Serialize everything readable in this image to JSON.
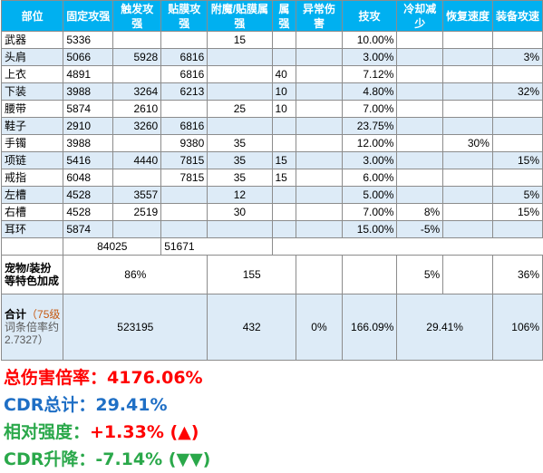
{
  "header": [
    "部位",
    "固定攻强",
    "触发攻强",
    "贴膜攻强",
    "附魔/贴膜属强",
    "属强",
    "异常伤害",
    "技攻",
    "冷却减少",
    "恢复速度",
    "装备攻速"
  ],
  "rows": [
    [
      "武器",
      "5336",
      "",
      "",
      "15",
      "",
      "",
      "10.00%",
      "",
      "",
      ""
    ],
    [
      "头肩",
      "5066",
      "5928",
      "6816",
      "",
      "",
      "",
      "3.00%",
      "",
      "",
      "3%"
    ],
    [
      "上衣",
      "4891",
      "",
      "6816",
      "",
      "40",
      "",
      "7.12%",
      "",
      "",
      ""
    ],
    [
      "下装",
      "3988",
      "3264",
      "6213",
      "",
      "10",
      "",
      "4.80%",
      "",
      "",
      "32%"
    ],
    [
      "腰带",
      "5874",
      "2610",
      "",
      "25",
      "10",
      "",
      "7.00%",
      "",
      "",
      ""
    ],
    [
      "鞋子",
      "2910",
      "3260",
      "6816",
      "",
      "",
      "",
      "23.75%",
      "",
      "",
      ""
    ],
    [
      "手镯",
      "3988",
      "",
      "9380",
      "35",
      "",
      "",
      "12.00%",
      "",
      "30%",
      ""
    ],
    [
      "项链",
      "5416",
      "4440",
      "7815",
      "35",
      "15",
      "",
      "3.00%",
      "",
      "",
      "15%"
    ],
    [
      "戒指",
      "6048",
      "",
      "7815",
      "35",
      "15",
      "",
      "6.00%",
      "",
      "",
      ""
    ],
    [
      "左槽",
      "4528",
      "3557",
      "",
      "12",
      "",
      "",
      "5.00%",
      "",
      "",
      "5%"
    ],
    [
      "右槽",
      "4528",
      "2519",
      "",
      "30",
      "",
      "",
      "7.00%",
      "8%",
      "",
      "15%"
    ],
    [
      "耳环",
      "5874",
      "",
      "",
      "",
      "",
      "",
      "15.00%",
      "-5%",
      "",
      ""
    ]
  ],
  "subtotal": {
    "trigger": "84025",
    "film": "51671"
  },
  "bonus": {
    "label_line1": "宠物/装扮",
    "label_line2": "等特色加成",
    "attack": "86%",
    "element": "155",
    "cooldown": "5%",
    "speed": "36%"
  },
  "total": {
    "label_prefix": "合计",
    "label_level": "（75级",
    "label_line2": "词条倍率约",
    "label_line3": "2.7327）",
    "attack": "523195",
    "element": "432",
    "abnormal": "0%",
    "skill": "166.09%",
    "cooldown": "29.41%",
    "speed": "106%"
  },
  "summary": {
    "total_damage_label": "总伤害倍率：",
    "total_damage_value": "4176.06%",
    "cdr_total_label": "CDR总计：",
    "cdr_total_value": "29.41%",
    "relative_label": "相对强度：",
    "relative_value": "+1.33% (▲)",
    "cdr_rise_label": "CDR升降：",
    "cdr_rise_value": "-7.14% (▼▼)"
  },
  "colors": {
    "header_bg": "#00b0f0",
    "band_blue": "#ddebf7",
    "red": "#ff0000",
    "blue": "#1f6fc5",
    "green": "#2aa84a"
  }
}
